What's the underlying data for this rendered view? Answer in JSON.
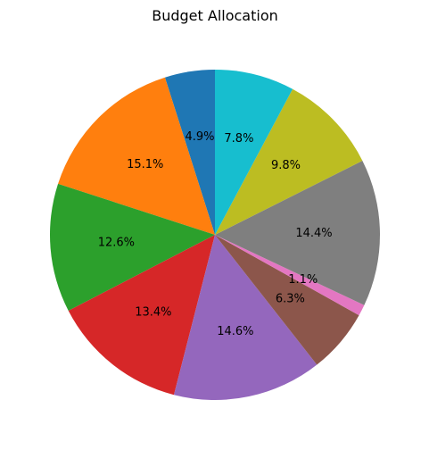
{
  "chart_data": {
    "type": "pie",
    "title": "Budget Allocation",
    "start_angle_deg": 90,
    "direction": "counterclockwise",
    "legend": "none",
    "slices": [
      {
        "label": "4.9%",
        "value": 4.9,
        "color": "#1f77b4"
      },
      {
        "label": "15.1%",
        "value": 15.1,
        "color": "#ff7f0e"
      },
      {
        "label": "12.6%",
        "value": 12.6,
        "color": "#2ca02c"
      },
      {
        "label": "13.4%",
        "value": 13.4,
        "color": "#d62728"
      },
      {
        "label": "14.6%",
        "value": 14.6,
        "color": "#9467bd"
      },
      {
        "label": "6.3%",
        "value": 6.3,
        "color": "#8c564b"
      },
      {
        "label": "1.1%",
        "value": 1.1,
        "color": "#e377c2"
      },
      {
        "label": "14.4%",
        "value": 14.4,
        "color": "#7f7f7f"
      },
      {
        "label": "9.8%",
        "value": 9.8,
        "color": "#bcbd22"
      },
      {
        "label": "7.8%",
        "value": 7.8,
        "color": "#17becf"
      }
    ]
  }
}
